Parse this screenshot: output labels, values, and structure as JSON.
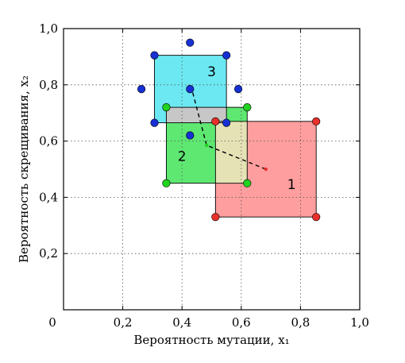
{
  "chart_data": {
    "type": "scatter",
    "title": "",
    "xlabel": "Вероятность мутации, x₁",
    "ylabel": "Вероятность скрещивания, x₂",
    "xlim": [
      0,
      1.0
    ],
    "ylim": [
      0,
      1.0
    ],
    "grid": true,
    "x_ticks": [
      {
        "value": 0,
        "label": "0"
      },
      {
        "value": 0.2,
        "label": "0,2"
      },
      {
        "value": 0.4,
        "label": "0,4"
      },
      {
        "value": 0.6,
        "label": "0,6"
      },
      {
        "value": 0.8,
        "label": "0,8"
      },
      {
        "value": 1.0,
        "label": "1,0"
      }
    ],
    "y_ticks": [
      {
        "value": 0.2,
        "label": "0,2"
      },
      {
        "value": 0.4,
        "label": "0,4"
      },
      {
        "value": 0.6,
        "label": "0,6"
      },
      {
        "value": 0.8,
        "label": "0,8"
      },
      {
        "value": 1.0,
        "label": "1,0"
      }
    ],
    "regions": [
      {
        "label": "1",
        "x_range": [
          0.513,
          0.853
        ],
        "y_range": [
          0.33,
          0.67
        ],
        "fill": "#ff9e9e",
        "point_color": "#e8302a",
        "label_pos": [
          0.77,
          0.43
        ],
        "points": [
          [
            0.513,
            0.67
          ],
          [
            0.853,
            0.67
          ],
          [
            0.513,
            0.33
          ],
          [
            0.853,
            0.33
          ]
        ],
        "center": [
          0.683,
          0.5
        ]
      },
      {
        "label": "2",
        "x_range": [
          0.347,
          0.62
        ],
        "y_range": [
          0.45,
          0.72
        ],
        "fill": "#5ee872",
        "point_color": "#1fd31f",
        "label_pos": [
          0.4,
          0.53
        ],
        "points": [
          [
            0.347,
            0.72
          ],
          [
            0.62,
            0.72
          ],
          [
            0.347,
            0.45
          ],
          [
            0.62,
            0.45
          ]
        ],
        "center": [
          0.483,
          0.585
        ]
      },
      {
        "label": "3",
        "x_range": [
          0.307,
          0.55
        ],
        "y_range": [
          0.665,
          0.905
        ],
        "fill": "#6ce8f2",
        "point_color": "#1630d4",
        "label_pos": [
          0.5,
          0.83
        ],
        "points": [
          [
            0.307,
            0.905
          ],
          [
            0.55,
            0.905
          ],
          [
            0.307,
            0.665
          ],
          [
            0.55,
            0.665
          ]
        ],
        "center": [
          0.433,
          0.785
        ]
      }
    ],
    "extra_points": [
      {
        "x": 0.427,
        "y": 0.95,
        "color": "#1630d4"
      },
      {
        "x": 0.263,
        "y": 0.785,
        "color": "#1630d4"
      },
      {
        "x": 0.59,
        "y": 0.785,
        "color": "#1630d4"
      },
      {
        "x": 0.427,
        "y": 0.62,
        "color": "#1630d4"
      },
      {
        "x": 0.427,
        "y": 0.785,
        "color": "#1630d4"
      }
    ],
    "path": [
      [
        0.683,
        0.5
      ],
      [
        0.483,
        0.585
      ],
      [
        0.433,
        0.785
      ]
    ],
    "overlap_colors": {
      "1&2": "#e5e3b6",
      "2&3": "#c7c7c7"
    }
  }
}
